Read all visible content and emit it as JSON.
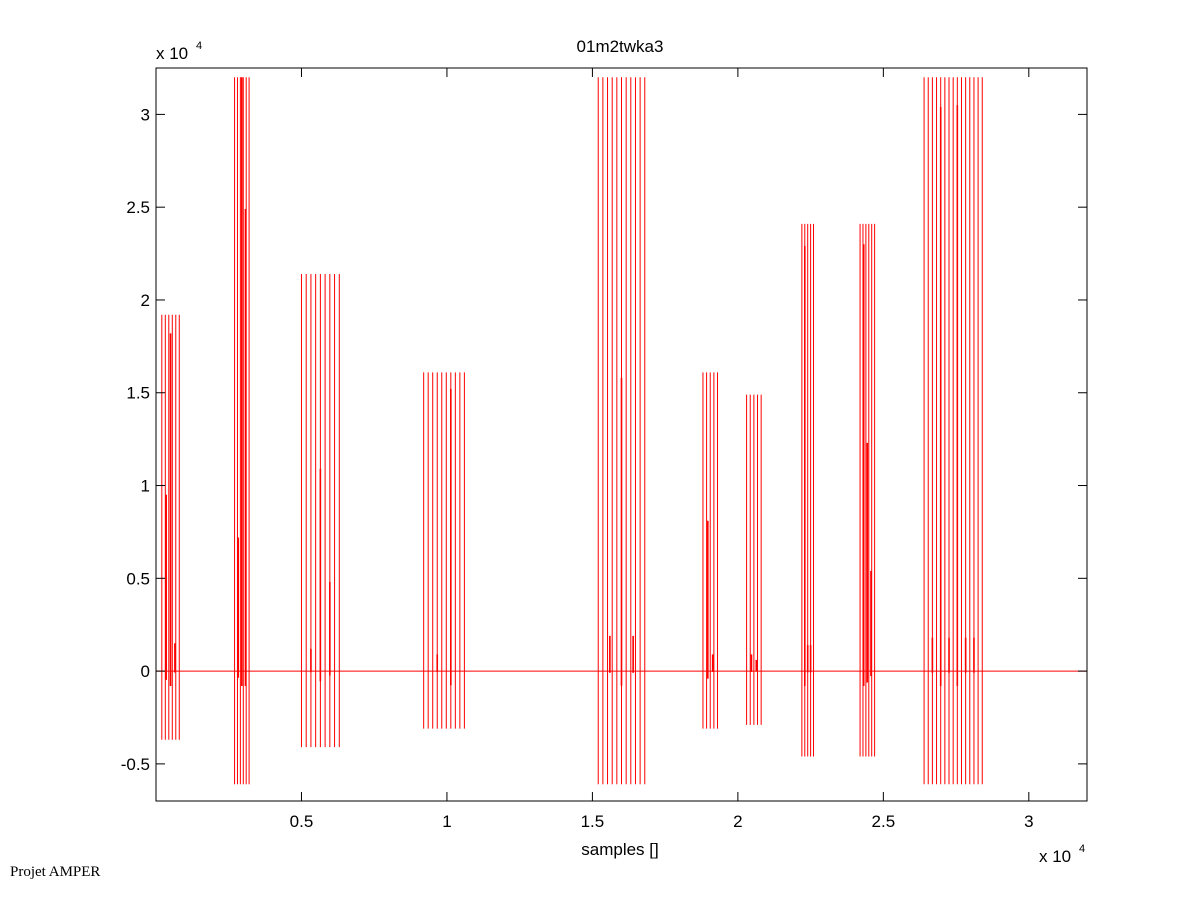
{
  "footer": "Projet AMPER",
  "chart_data": {
    "type": "line",
    "title": "01m2twka3",
    "xlabel": "samples []",
    "ylabel": "",
    "x_multiplier_label": "x 10",
    "y_multiplier_label": "x 10",
    "multiplier_exponent": "4",
    "xlim": [
      0,
      32000
    ],
    "ylim": [
      -7000,
      32500
    ],
    "x_ticks": [
      5000,
      10000,
      15000,
      20000,
      25000,
      30000
    ],
    "x_tick_labels": [
      "0.5",
      "1",
      "1.5",
      "2",
      "2.5",
      "3"
    ],
    "y_ticks": [
      -5000,
      0,
      5000,
      10000,
      15000,
      20000,
      25000,
      30000
    ],
    "y_tick_labels": [
      "-0.5",
      "0",
      "0.5",
      "1",
      "1.5",
      "2",
      "2.5",
      "3"
    ],
    "grid": false,
    "color": "#ff0000",
    "series": [
      {
        "bursts": [
          {
            "start": 200,
            "end": 800,
            "lines": 6,
            "max": 19200,
            "min": -3700,
            "peaks": [
              9500,
              18200,
              1500
            ]
          },
          {
            "start": 2700,
            "end": 3200,
            "lines": 6,
            "max": 32000,
            "min": -6100,
            "peaks": [
              7200,
              32000,
              24900
            ]
          },
          {
            "start": 5000,
            "end": 6300,
            "lines": 9,
            "max": 21400,
            "min": -4100,
            "peaks": [
              1200,
              10900,
              4800
            ]
          },
          {
            "start": 9200,
            "end": 10600,
            "lines": 10,
            "max": 16100,
            "min": -3100,
            "peaks": [
              900,
              15200
            ]
          },
          {
            "start": 15200,
            "end": 16800,
            "lines": 11,
            "max": 32000,
            "min": -6100,
            "peaks": [
              1900,
              15800,
              1900
            ]
          },
          {
            "start": 18800,
            "end": 19300,
            "lines": 5,
            "max": 16100,
            "min": -3100,
            "peaks": [
              8100,
              900
            ]
          },
          {
            "start": 20300,
            "end": 20800,
            "lines": 5,
            "max": 14900,
            "min": -2900,
            "peaks": [
              900,
              600
            ]
          },
          {
            "start": 22200,
            "end": 22600,
            "lines": 5,
            "max": 24100,
            "min": -4600,
            "peaks": [
              22900,
              1400,
              1400
            ]
          },
          {
            "start": 24200,
            "end": 24700,
            "lines": 6,
            "max": 24100,
            "min": -4600,
            "peaks": [
              23000,
              12300,
              5400
            ]
          },
          {
            "start": 26400,
            "end": 28400,
            "lines": 15,
            "max": 32000,
            "min": -6100,
            "peaks": [
              1800,
              30400,
              1800,
              30500,
              1800,
              1800
            ]
          }
        ]
      }
    ]
  }
}
